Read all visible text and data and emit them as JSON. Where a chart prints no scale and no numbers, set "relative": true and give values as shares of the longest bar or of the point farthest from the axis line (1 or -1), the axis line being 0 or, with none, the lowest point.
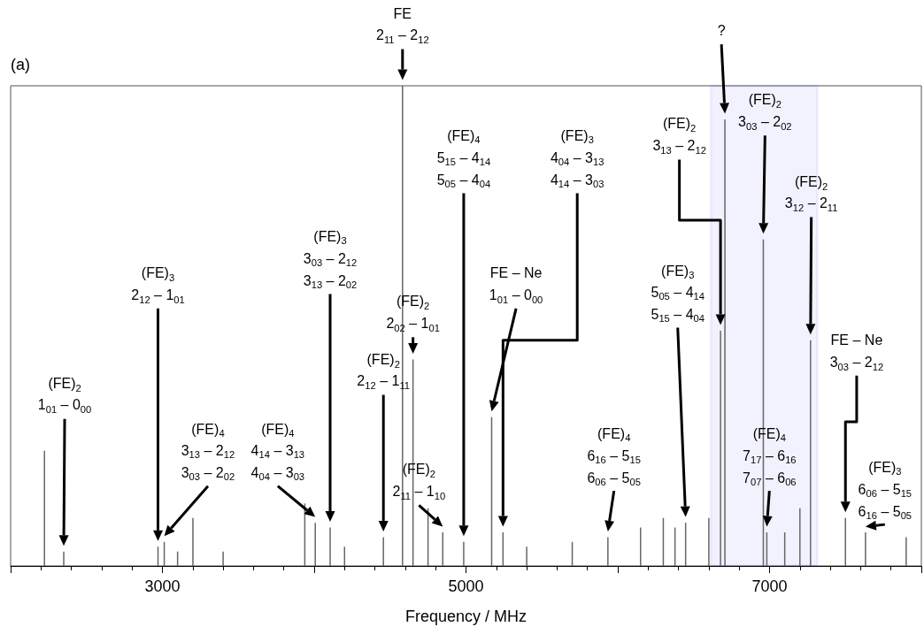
{
  "chart_data": {
    "type": "bar",
    "relative": true,
    "xlabel": "Frequency / MHz",
    "xlim": [
      2000,
      8000
    ],
    "xticks": [
      {
        "value": 2000,
        "label": null
      },
      3000,
      {
        "value": 4000,
        "label": null
      },
      5000,
      {
        "value": 6000,
        "label": null
      },
      7000,
      {
        "value": 8000,
        "label": null
      }
    ],
    "x": [
      2223,
      2350,
      2971,
      3012,
      3100,
      3201,
      3400,
      3938,
      4007,
      4105,
      4200,
      4456,
      4582,
      4651,
      4750,
      4847,
      4985,
      5169,
      5244,
      5400,
      5700,
      5935,
      6150,
      6300,
      6377,
      6447,
      6600,
      6677,
      6706,
      6959,
      6982,
      7100,
      7200,
      7270,
      7500,
      7632,
      7900
    ],
    "series": [
      {
        "color": "#666666",
        "values": [
          0.24,
          0.03,
          0.04,
          0.05,
          0.03,
          0.1,
          0.03,
          0.13,
          0.09,
          0.08,
          0.04,
          0.06,
          1,
          0.43,
          0.12,
          0.07,
          0.05,
          0.31,
          0.07,
          0.04,
          0.05,
          0.06,
          0.08,
          0.1,
          0.08,
          0.09,
          0.1,
          0.49,
          0.93,
          0.68,
          0.07,
          0.07,
          0.12,
          0.47,
          0.1,
          0.07,
          0.06
        ]
      }
    ],
    "bands": [
      {
        "axis": "x",
        "from": 6613,
        "to": 7315,
        "color": "#0000ff"
      }
    ],
    "annotations": [
      "(a)",
      "(FE)$_{2}$\n1$_{01}$ – 0$_{00}$",
      "(FE)$_{3}$\n2$_{12}$ – 1$_{01}$",
      "(FE)$_{4}$\n3$_{13}$ – 2$_{12}$\n3$_{03}$ – 2$_{02}$",
      "(FE)$_{3}$\n3$_{03}$ – 2$_{12}$\n3$_{13}$ – 2$_{02}$",
      "(FE)$_{4}$\n4$_{14}$ – 3$_{13}$\n4$_{04}$ – 3$_{03}$",
      "(FE)$_{2}$\n2$_{12}$ – 1$_{11}$",
      "FE\n2$_{11}$ – 2$_{12}$",
      "(FE)$_{2}$\n2$_{02}$ – 1$_{01}$",
      "(FE)$_{2}$\n2$_{11}$ – 1$_{10}$",
      "(FE)$_{4}$\n5$_{15}$ – 4$_{14}$\n5$_{05}$ – 4$_{04}$",
      "FE – Ne\n1$_{01}$ – 0$_{00}$",
      "(FE)$_{3}$\n4$_{04}$ – 3$_{13}$\n4$_{14}$ – 3$_{03}$",
      "(FE)$_{4}$\n6$_{16}$ – 5$_{15}$\n6$_{06}$ – 5$_{05}$",
      "(FE)$_{2}$\n3$_{13}$ – 2$_{12}$",
      "(FE)$_{3}$\n5$_{05}$ – 4$_{14}$\n5$_{15}$ – 4$_{04}$",
      "?",
      "(FE)$_{2}$\n3$_{03}$ – 2$_{02}$",
      "(FE)$_{2}$\n3$_{12}$ – 2$_{11}$",
      "FE – Ne\n3$_{03}$ – 2$_{12}$",
      "(FE)$_{3}$\n6$_{06}$ – 5$_{15}$\n6$_{16}$ – 5$_{05}$",
      "(FE)$_{4}$\n7$_{17}$ – 6$_{16}$\n7$_{07}$ – 6$_{06}$"
    ]
  }
}
